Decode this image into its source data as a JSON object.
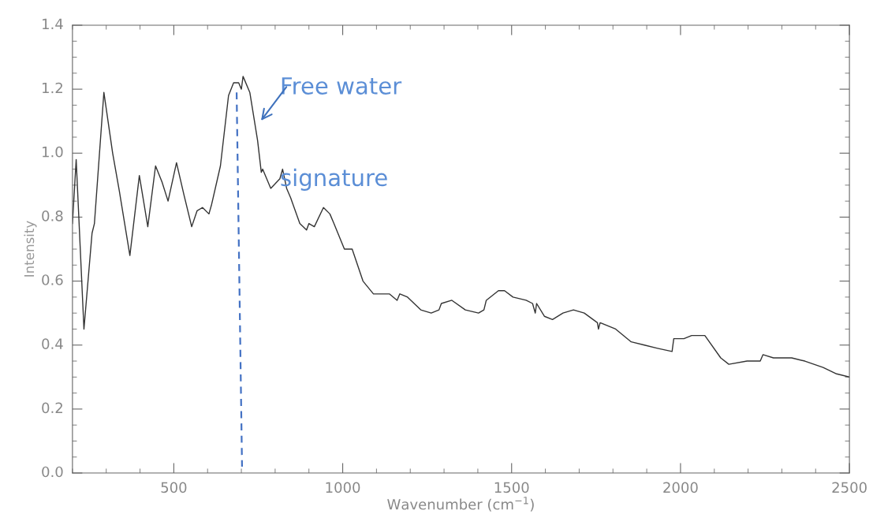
{
  "chart_data": {
    "type": "line",
    "xlabel": "Wavenumber (cm$^{−1}$)",
    "ylabel": "Intensity",
    "xlim": [
      200,
      2500
    ],
    "xticks": [
      500,
      1000,
      1500,
      2000,
      2500
    ],
    "ylim": [
      0,
      1.4
    ],
    "yticks": [
      {
        "value": 0,
        "label": "0.0"
      },
      {
        "value": 0.2,
        "label": "0.2"
      },
      {
        "value": 0.4,
        "label": "0.4"
      },
      {
        "value": 0.6,
        "label": "0.6"
      },
      {
        "value": 0.8,
        "label": "0.8"
      },
      {
        "value": 1.0,
        "label": "1.0"
      },
      {
        "value": 1.2,
        "label": "1.2"
      },
      {
        "value": 1.4,
        "label": "1.4"
      }
    ],
    "grid": false,
    "legend": false,
    "marker": "none",
    "series": [
      {
        "color": "#333333",
        "line_style": "solid",
        "x": [
          200,
          211,
          234,
          258,
          265,
          293,
          319,
          339,
          370,
          398,
          409,
          423,
          446,
          465,
          483,
          508,
          530,
          553,
          569,
          585,
          604,
          612,
          638,
          662,
          677,
          692,
          700,
          705,
          725,
          748,
          759,
          763,
          787,
          814,
          822,
          834,
          846,
          873,
          893,
          900,
          916,
          943,
          962,
          974,
          1005,
          1028,
          1060,
          1091,
          1138,
          1161,
          1169,
          1192,
          1231,
          1262,
          1285,
          1292,
          1323,
          1363,
          1402,
          1418,
          1425,
          1461,
          1479,
          1504,
          1543,
          1562,
          1570,
          1574,
          1597,
          1621,
          1652,
          1683,
          1715,
          1754,
          1757,
          1762,
          1808,
          1854,
          1893,
          1932,
          1975,
          1980,
          2010,
          2033,
          2072,
          2119,
          2143,
          2197,
          2236,
          2244,
          2275,
          2329,
          2368,
          2422,
          2462,
          2500
        ],
        "values": [
          0.78,
          0.98,
          0.45,
          0.75,
          0.78,
          1.19,
          1.0,
          0.88,
          0.68,
          0.93,
          0.86,
          0.77,
          0.96,
          0.91,
          0.85,
          0.97,
          0.87,
          0.77,
          0.82,
          0.83,
          0.81,
          0.84,
          0.96,
          1.18,
          1.22,
          1.22,
          1.2,
          1.24,
          1.19,
          1.04,
          0.94,
          0.95,
          0.89,
          0.92,
          0.95,
          0.89,
          0.86,
          0.78,
          0.76,
          0.78,
          0.77,
          0.83,
          0.81,
          0.78,
          0.7,
          0.7,
          0.6,
          0.56,
          0.56,
          0.54,
          0.56,
          0.55,
          0.51,
          0.5,
          0.51,
          0.53,
          0.54,
          0.51,
          0.5,
          0.51,
          0.54,
          0.57,
          0.57,
          0.55,
          0.54,
          0.53,
          0.5,
          0.53,
          0.49,
          0.48,
          0.5,
          0.51,
          0.5,
          0.47,
          0.45,
          0.47,
          0.45,
          0.41,
          0.4,
          0.39,
          0.38,
          0.42,
          0.42,
          0.43,
          0.43,
          0.36,
          0.34,
          0.35,
          0.35,
          0.37,
          0.36,
          0.36,
          0.35,
          0.33,
          0.31,
          0.3
        ]
      },
      {
        "color": "#4472c4",
        "line_style": "dashed",
        "x": [
          686,
          702
        ],
        "values": [
          1.19,
          0.02
        ]
      }
    ],
    "annotations": [
      "Free water",
      "signature"
    ]
  }
}
